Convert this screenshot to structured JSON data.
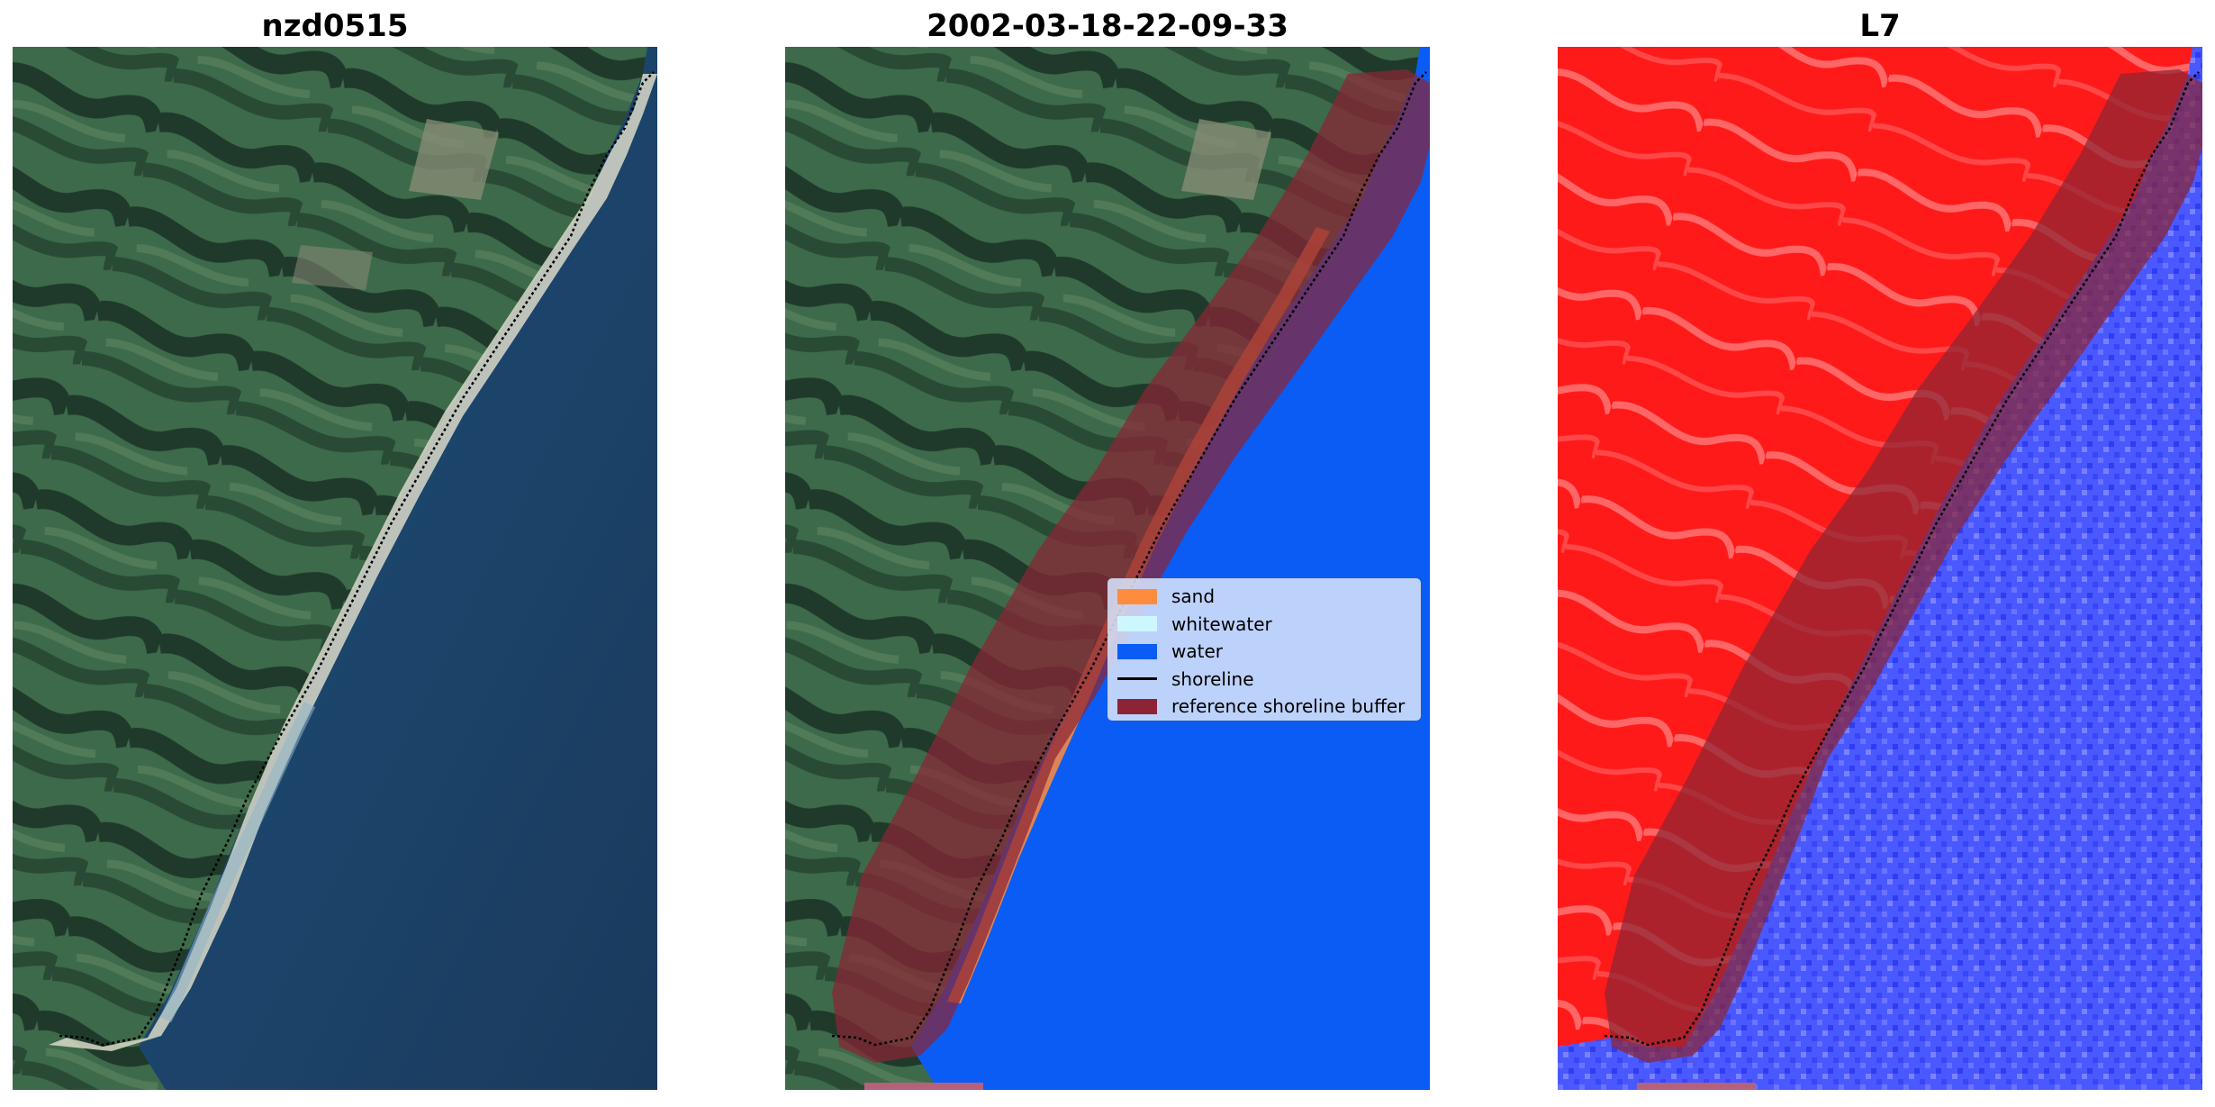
{
  "panels": [
    {
      "title": "nzd0515"
    },
    {
      "title": "2002-03-18-22-09-33"
    },
    {
      "title": "L7"
    }
  ],
  "legend": {
    "items": [
      {
        "label": "sand",
        "color": "#ff8c3c",
        "kind": "patch"
      },
      {
        "label": "whitewater",
        "color": "#ccf7ff",
        "kind": "patch"
      },
      {
        "label": "water",
        "color": "#0a5cf5",
        "kind": "patch"
      },
      {
        "label": "shoreline",
        "color": "#000000",
        "kind": "line"
      },
      {
        "label": "reference shoreline buffer",
        "color": "#8b2535",
        "kind": "patch"
      }
    ]
  },
  "colors": {
    "land_dark": "#23412f",
    "land_mid": "#3f6a4a",
    "sea_deep": "#1c3f63",
    "sand_beach": "#d8d8c8",
    "classified_water": "#0a5cf5",
    "buffer": "#8b2535",
    "index_land": "#ff1818",
    "index_water": "#4a58ff"
  }
}
